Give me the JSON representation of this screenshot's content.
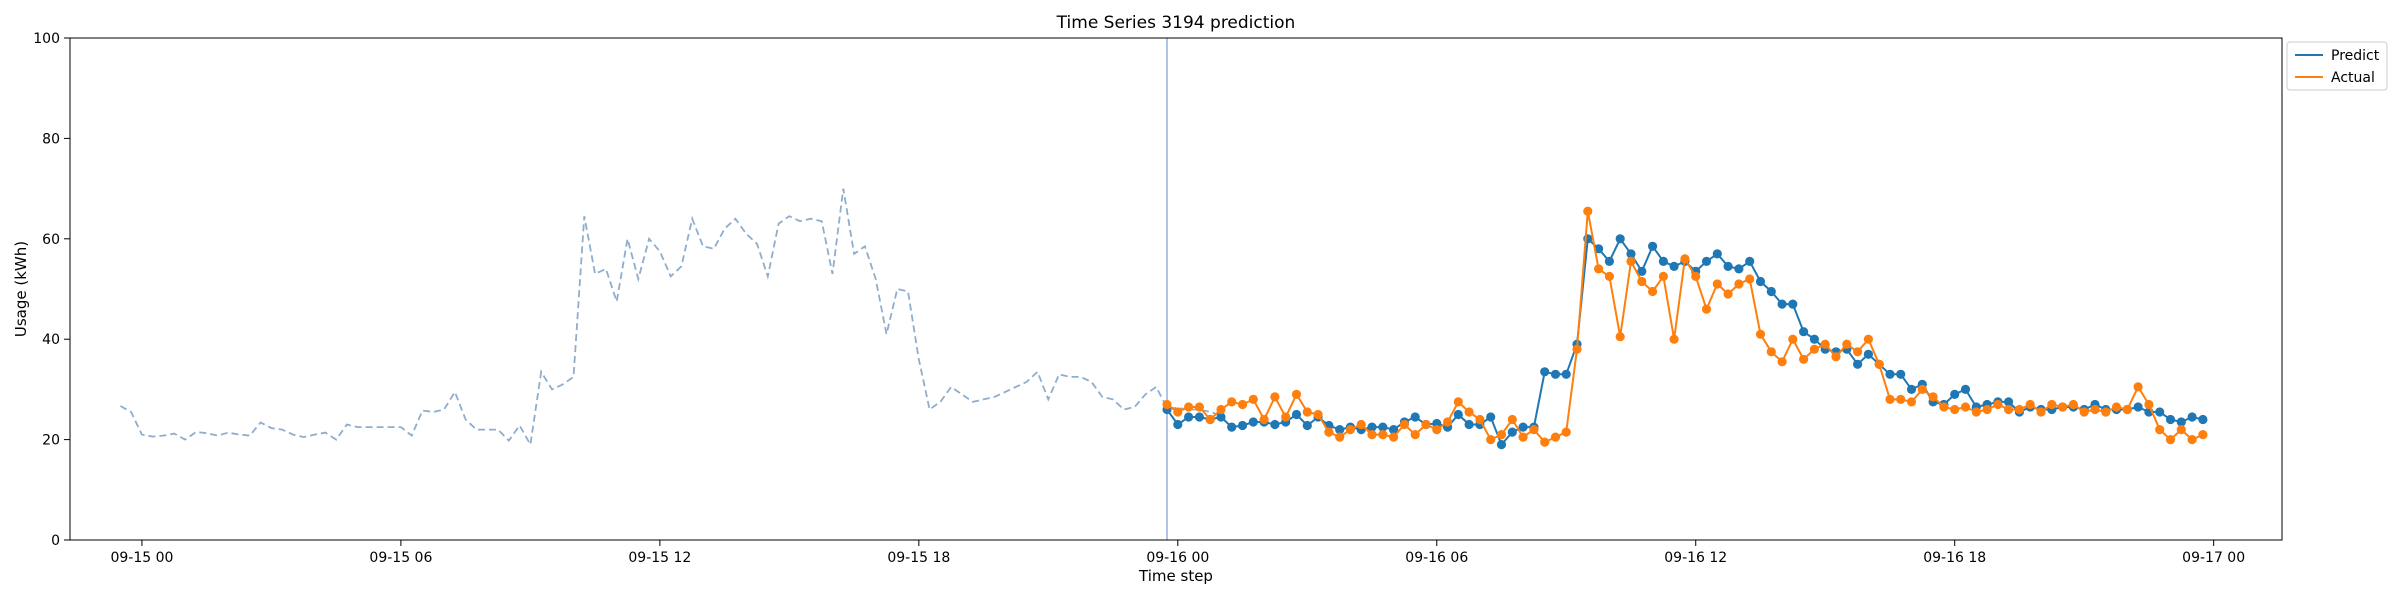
{
  "chart_data": {
    "type": "line",
    "title": "Time Series 3194 prediction",
    "xlabel": "Time step",
    "ylabel": "Usage (kWh)",
    "ylim": [
      0,
      100
    ],
    "yticks": [
      0,
      20,
      40,
      60,
      80,
      100
    ],
    "xlim": [
      "2023-09-14T22:20",
      "2023-09-17T01:35"
    ],
    "xticks": [
      {
        "value": "2023-09-15T00:00",
        "label": "09-15 00"
      },
      {
        "value": "2023-09-15T06:00",
        "label": "09-15 06"
      },
      {
        "value": "2023-09-15T12:00",
        "label": "09-15 12"
      },
      {
        "value": "2023-09-15T18:00",
        "label": "09-15 18"
      },
      {
        "value": "2023-09-16T00:00",
        "label": "09-16 00"
      },
      {
        "value": "2023-09-16T06:00",
        "label": "09-16 06"
      },
      {
        "value": "2023-09-16T12:00",
        "label": "09-16 12"
      },
      {
        "value": "2023-09-16T18:00",
        "label": "09-16 18"
      },
      {
        "value": "2023-09-17T00:00",
        "label": "09-17 00"
      }
    ],
    "grid": false,
    "legend_position": "upper right, outside",
    "forecast_start": "2023-09-15T23:45",
    "interval_minutes": 15,
    "series": [
      {
        "name": "history",
        "style": "dashed",
        "color": "#8fadcc",
        "start": "2023-09-14T23:30",
        "values": [
          26.7,
          25.5,
          21.0,
          20.6,
          20.8,
          21.2,
          20.0,
          21.5,
          21.3,
          20.8,
          21.4,
          21.0,
          20.8,
          23.4,
          22.3,
          22.0,
          21.0,
          20.5,
          21.0,
          21.4,
          20.0,
          23.0,
          22.5,
          22.5,
          22.5,
          22.5,
          22.5,
          20.8,
          25.8,
          25.5,
          26.0,
          29.5,
          24.0,
          22.0,
          22.0,
          22.0,
          19.8,
          22.8,
          19.0,
          33.5,
          30.0,
          31.0,
          32.5,
          64.5,
          53.0,
          54.0,
          47.5,
          60.0,
          52.0,
          60.0,
          57.5,
          52.5,
          54.5,
          64.0,
          58.5,
          58.0,
          62.0,
          64.0,
          61.0,
          59.0,
          52.5,
          63.0,
          64.5,
          63.5,
          64.0,
          63.5,
          53.0,
          70.0,
          57.0,
          58.5,
          52.0,
          41.0,
          50.0,
          49.5,
          36.0,
          26.0,
          27.5,
          30.5,
          29.0,
          27.5,
          28.0,
          28.5,
          29.5,
          30.5,
          31.5,
          33.5,
          28.0,
          33.0,
          32.5,
          32.5,
          31.5,
          28.5,
          28.0,
          26.0,
          26.5,
          29.0,
          30.5,
          26.3,
          26.3,
          26.0,
          26.0,
          25.5,
          24.8
        ]
      },
      {
        "name": "Predict",
        "color": "#1f77b4",
        "start": "2023-09-15T23:45",
        "values": [
          26.0,
          23.0,
          24.5,
          24.5,
          24.0,
          24.5,
          22.5,
          22.8,
          23.5,
          23.5,
          23.0,
          23.5,
          25.0,
          22.8,
          24.5,
          22.8,
          22.0,
          22.5,
          22.0,
          22.5,
          22.5,
          22.0,
          23.5,
          24.5,
          23.0,
          23.2,
          22.5,
          25.0,
          23.0,
          23.0,
          24.5,
          19.0,
          21.5,
          22.5,
          22.5,
          33.5,
          33.0,
          33.0,
          39.0,
          60.0,
          58.0,
          55.5,
          60.0,
          57.0,
          53.5,
          58.5,
          55.5,
          54.5,
          55.5,
          53.5,
          55.5,
          57.0,
          54.5,
          54.0,
          55.5,
          51.5,
          49.5,
          47.0,
          47.0,
          41.5,
          40.0,
          38.0,
          37.5,
          38.0,
          35.0,
          37.0,
          35.0,
          33.0,
          33.0,
          30.0,
          31.0,
          27.5,
          27.0,
          29.0,
          30.0,
          26.5,
          27.0,
          27.5,
          27.5,
          25.5,
          26.5,
          26.0,
          26.0,
          26.5,
          26.5,
          26.0,
          27.0,
          26.0,
          26.0,
          26.0,
          26.5,
          25.5,
          25.5,
          24.0,
          23.5,
          24.5,
          24.0
        ]
      },
      {
        "name": "Actual",
        "color": "#ff7f0e",
        "start": "2023-09-15T23:45",
        "values": [
          27.0,
          25.5,
          26.5,
          26.5,
          24.0,
          26.0,
          27.5,
          27.0,
          28.0,
          24.0,
          28.5,
          24.5,
          29.0,
          25.5,
          25.0,
          21.5,
          20.5,
          22.0,
          23.0,
          21.0,
          21.0,
          20.5,
          23.0,
          21.0,
          23.0,
          22.0,
          23.5,
          27.5,
          25.5,
          24.0,
          20.0,
          21.0,
          24.0,
          20.5,
          22.0,
          19.5,
          20.5,
          21.5,
          38.0,
          65.5,
          54.0,
          52.5,
          40.5,
          55.5,
          51.5,
          49.5,
          52.5,
          40.0,
          56.0,
          52.5,
          46.0,
          51.0,
          49.0,
          51.0,
          52.0,
          41.0,
          37.5,
          35.5,
          40.0,
          36.0,
          38.0,
          39.0,
          36.5,
          39.0,
          37.5,
          40.0,
          35.0,
          28.0,
          28.0,
          27.5,
          30.0,
          28.5,
          26.5,
          26.0,
          26.5,
          25.5,
          26.0,
          27.0,
          26.0,
          26.0,
          27.0,
          25.5,
          27.0,
          26.5,
          27.0,
          25.5,
          26.0,
          25.5,
          26.5,
          26.0,
          30.5,
          27.0,
          22.0,
          20.0,
          22.0,
          20.0,
          21.0
        ]
      }
    ]
  },
  "legend": [
    {
      "label": "Predict",
      "color": "#1f77b4"
    },
    {
      "label": "Actual",
      "color": "#ff7f0e"
    }
  ]
}
